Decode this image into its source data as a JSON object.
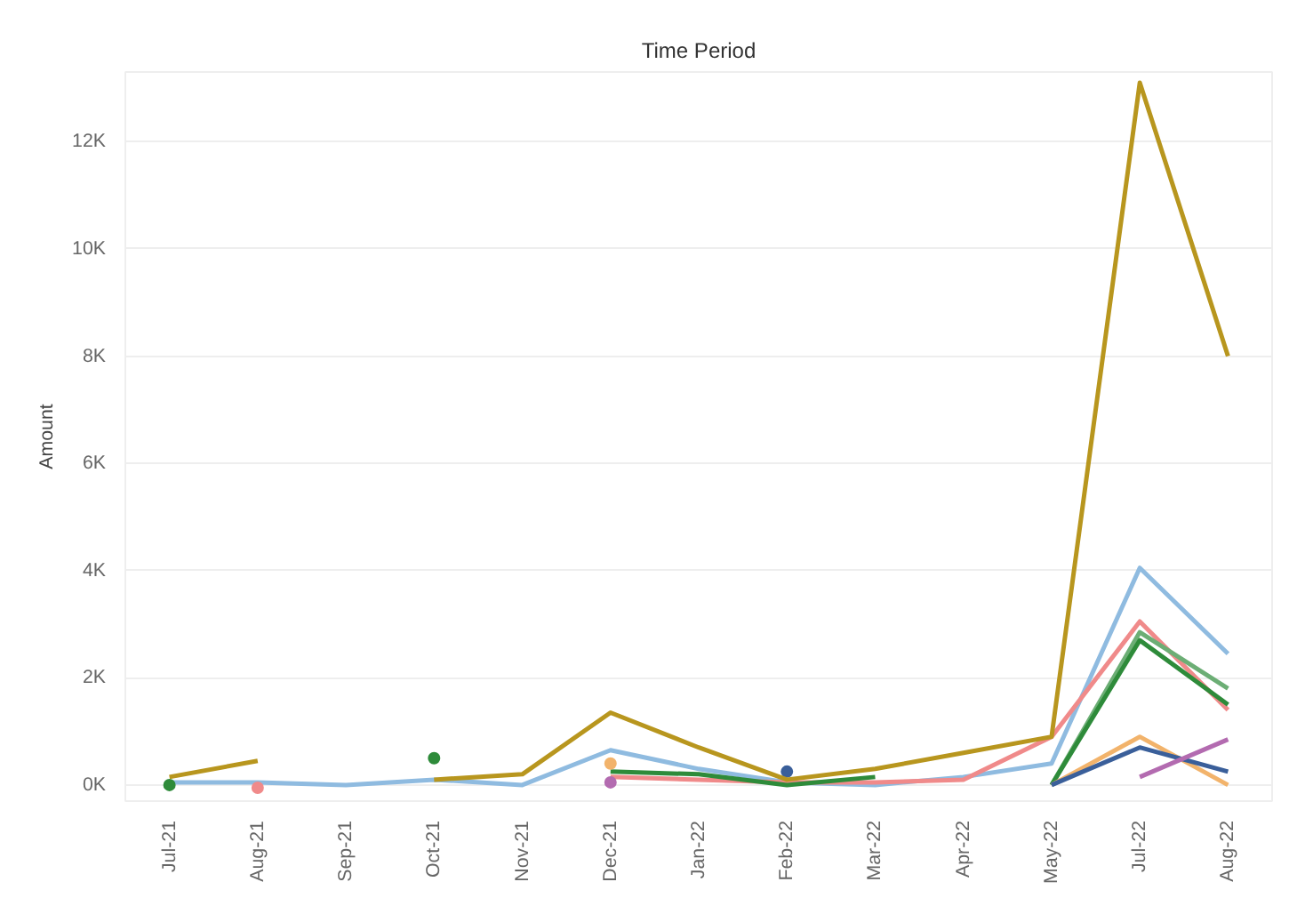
{
  "chart_data": {
    "type": "line",
    "title": "Time Period",
    "ylabel": "Amount",
    "categories": [
      "Jul-21",
      "Aug-21",
      "Sep-21",
      "Oct-21",
      "Nov-21",
      "Dec-21",
      "Jan-22",
      "Feb-22",
      "Mar-22",
      "Apr-22",
      "May-22",
      "Jul-22",
      "Aug-22"
    ],
    "ylim": [
      -300,
      13300
    ],
    "yticks": [
      {
        "value": 0,
        "label": "0K"
      },
      {
        "value": 2000,
        "label": "2K"
      },
      {
        "value": 4000,
        "label": "4K"
      },
      {
        "value": 6000,
        "label": "6K"
      },
      {
        "value": 8000,
        "label": "8K"
      },
      {
        "value": 10000,
        "label": "10K"
      },
      {
        "value": 12000,
        "label": "12K"
      }
    ],
    "grid": "y",
    "series": [
      {
        "color": "#8fbbe0",
        "values": [
          50,
          50,
          0,
          100,
          0,
          650,
          300,
          50,
          0,
          150,
          400,
          4050,
          2450
        ]
      },
      {
        "color": "#f08a8a",
        "values": [
          null,
          -50,
          null,
          null,
          null,
          150,
          100,
          50,
          50,
          100,
          900,
          3050,
          1400
        ]
      },
      {
        "color": "#6cae75",
        "values": [
          null,
          null,
          null,
          null,
          null,
          null,
          null,
          null,
          null,
          null,
          0,
          2850,
          1800
        ]
      },
      {
        "color": "#2e8b3a",
        "values": [
          0,
          null,
          null,
          500,
          null,
          250,
          200,
          0,
          150,
          null,
          0,
          2700,
          1500
        ]
      },
      {
        "color": "#f2b36b",
        "values": [
          null,
          null,
          null,
          null,
          null,
          400,
          null,
          null,
          null,
          null,
          0,
          900,
          0
        ]
      },
      {
        "color": "#3a5f9a",
        "values": [
          null,
          null,
          null,
          null,
          null,
          null,
          null,
          250,
          null,
          null,
          0,
          700,
          250
        ]
      },
      {
        "color": "#b36bb0",
        "values": [
          null,
          null,
          null,
          null,
          null,
          50,
          null,
          null,
          null,
          null,
          null,
          150,
          850
        ]
      },
      {
        "color": "#b8961e",
        "values": [
          150,
          450,
          null,
          100,
          200,
          1350,
          700,
          100,
          300,
          600,
          900,
          13100,
          8000
        ]
      }
    ]
  }
}
